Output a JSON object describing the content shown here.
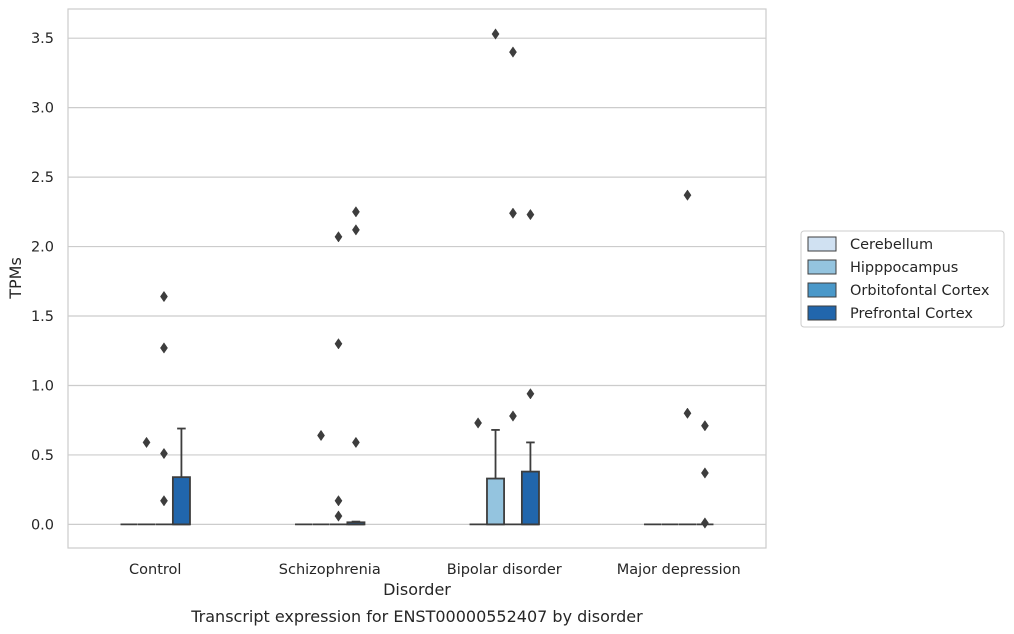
{
  "caption": "Transcript expression for ENST00000552407 by disorder",
  "chart_data": {
    "type": "box",
    "title": "",
    "xlabel": "Disorder",
    "ylabel": "TPMs",
    "ylim": [
      -0.17,
      3.71
    ],
    "yticks": [
      "0.0",
      "0.5",
      "1.0",
      "1.5",
      "2.0",
      "2.5",
      "3.0",
      "3.5"
    ],
    "categories": [
      "Control",
      "Schizophrenia",
      "Bipolar disorder",
      "Major depression"
    ],
    "grid": "horizontal",
    "legend_position": "right",
    "series": [
      {
        "name": "Cerebellum",
        "color": "#d0e1f2",
        "boxes": [
          {
            "q1": 0,
            "median": 0,
            "q3": 0,
            "whisker_low": 0,
            "whisker_high": 0,
            "outliers": []
          },
          {
            "q1": 0,
            "median": 0,
            "q3": 0,
            "whisker_low": 0,
            "whisker_high": 0,
            "outliers": []
          },
          {
            "q1": 0,
            "median": 0,
            "q3": 0,
            "whisker_low": 0,
            "whisker_high": 0,
            "outliers": [
              0.73
            ]
          },
          {
            "q1": 0,
            "median": 0,
            "q3": 0,
            "whisker_low": 0,
            "whisker_high": 0,
            "outliers": []
          }
        ]
      },
      {
        "name": "Hipppocampus",
        "color": "#94c4df",
        "boxes": [
          {
            "q1": 0,
            "median": 0,
            "q3": 0,
            "whisker_low": 0,
            "whisker_high": 0,
            "outliers": [
              0.59
            ]
          },
          {
            "q1": 0,
            "median": 0,
            "q3": 0,
            "whisker_low": 0,
            "whisker_high": 0,
            "outliers": [
              0.64
            ]
          },
          {
            "q1": 0,
            "median": 0,
            "q3": 0.33,
            "whisker_low": 0,
            "whisker_high": 0.68,
            "outliers": [
              3.53
            ]
          },
          {
            "q1": 0,
            "median": 0,
            "q3": 0,
            "whisker_low": 0,
            "whisker_high": 0,
            "outliers": []
          }
        ]
      },
      {
        "name": "Orbitofontal Cortex",
        "color": "#4a98c9",
        "boxes": [
          {
            "q1": 0,
            "median": 0,
            "q3": 0,
            "whisker_low": 0,
            "whisker_high": 0,
            "outliers": [
              0.17,
              0.51,
              1.27,
              1.64
            ]
          },
          {
            "q1": 0,
            "median": 0,
            "q3": 0,
            "whisker_low": 0,
            "whisker_high": 0,
            "outliers": [
              0.06,
              0.17,
              1.3,
              2.07
            ]
          },
          {
            "q1": 0,
            "median": 0,
            "q3": 0,
            "whisker_low": 0,
            "whisker_high": 0,
            "outliers": [
              0.78,
              2.24,
              3.4
            ]
          },
          {
            "q1": 0,
            "median": 0,
            "q3": 0,
            "whisker_low": 0,
            "whisker_high": 0,
            "outliers": [
              0.8,
              2.37
            ]
          }
        ]
      },
      {
        "name": "Prefrontal Cortex",
        "color": "#2166ac",
        "boxes": [
          {
            "q1": 0,
            "median": 0,
            "q3": 0.34,
            "whisker_low": 0,
            "whisker_high": 0.69,
            "outliers": []
          },
          {
            "q1": 0,
            "median": 0,
            "q3": 0.015,
            "whisker_low": 0,
            "whisker_high": 0.02,
            "outliers": [
              0.59,
              2.12,
              2.25
            ]
          },
          {
            "q1": 0,
            "median": 0,
            "q3": 0.38,
            "whisker_low": 0,
            "whisker_high": 0.59,
            "outliers": [
              0.94,
              2.23
            ]
          },
          {
            "q1": 0,
            "median": 0,
            "q3": 0,
            "whisker_low": 0,
            "whisker_high": 0,
            "outliers": [
              0.01,
              0.37,
              0.71
            ]
          }
        ]
      }
    ]
  }
}
